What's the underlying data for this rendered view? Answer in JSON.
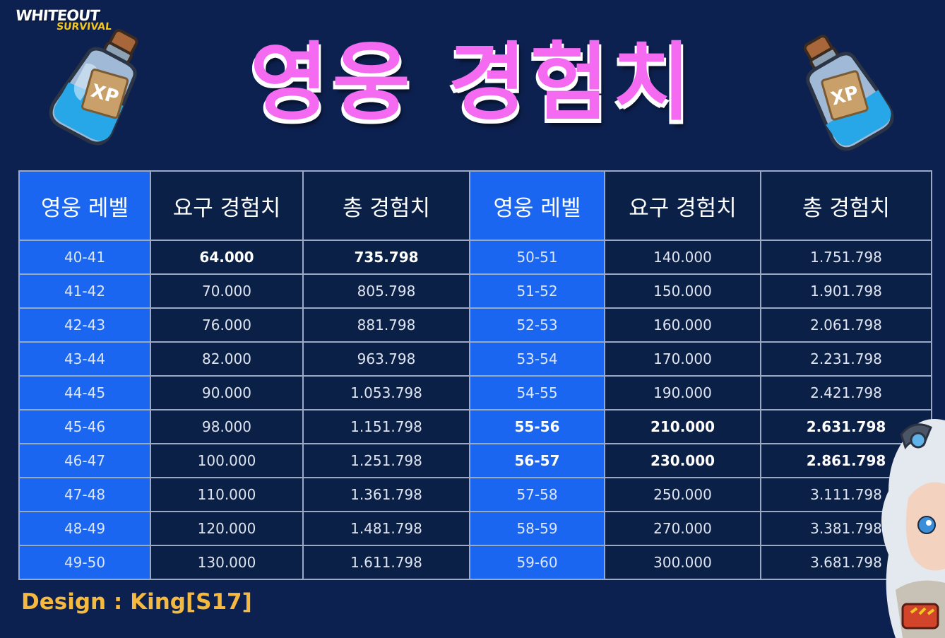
{
  "logo": {
    "line1": "WHITEOUT",
    "line2": "SURVIVAL"
  },
  "title": "영웅 경험치",
  "bottle_label": "XP",
  "table": {
    "headers": [
      "영웅 레벨",
      "요구 경험치",
      "총 경험치",
      "영웅 레벨",
      "요구 경험치",
      "총 경험치"
    ],
    "rows": [
      [
        "40-41",
        "64.000",
        "735.798",
        "50-51",
        "140.000",
        "1.751.798"
      ],
      [
        "41-42",
        "70.000",
        "805.798",
        "51-52",
        "150.000",
        "1.901.798"
      ],
      [
        "42-43",
        "76.000",
        "881.798",
        "52-53",
        "160.000",
        "2.061.798"
      ],
      [
        "43-44",
        "82.000",
        "963.798",
        "53-54",
        "170.000",
        "2.231.798"
      ],
      [
        "44-45",
        "90.000",
        "1.053.798",
        "54-55",
        "190.000",
        "2.421.798"
      ],
      [
        "45-46",
        "98.000",
        "1.151.798",
        "55-56",
        "210.000",
        "2.631.798"
      ],
      [
        "46-47",
        "100.000",
        "1.251.798",
        "56-57",
        "230.000",
        "2.861.798"
      ],
      [
        "47-48",
        "110.000",
        "1.361.798",
        "57-58",
        "250.000",
        "3.111.798"
      ],
      [
        "48-49",
        "120.000",
        "1.481.798",
        "58-59",
        "270.000",
        "3.381.798"
      ],
      [
        "49-50",
        "130.000",
        "1.611.798",
        "59-60",
        "300.000",
        "3.681.798"
      ]
    ]
  },
  "footer": {
    "design_credit": "Design : King[S17]"
  },
  "colors": {
    "background": "#0d2150",
    "title": "#f46af0",
    "level_cell": "#1a66f0",
    "credit": "#f5b940"
  },
  "icons": [
    "xp-bottle-icon",
    "hero-character-illustration"
  ]
}
